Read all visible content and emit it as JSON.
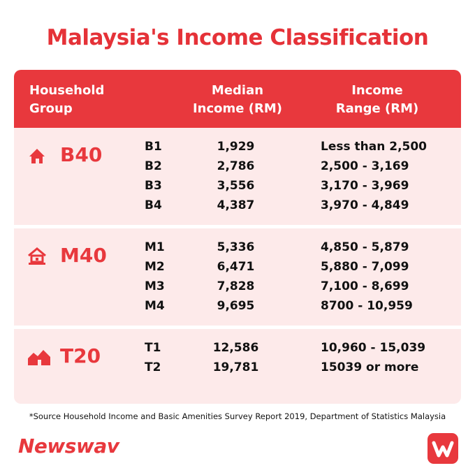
{
  "title": "Malaysia's Income Classification",
  "table": {
    "header": [
      "Household Group",
      "Median Income (RM)",
      "Income Range (RM)"
    ],
    "groups": [
      {
        "name": "B40",
        "rows": [
          [
            "B1",
            "1,929",
            "Less than 2,500"
          ],
          [
            "B2",
            "2,786",
            "2,500 - 3,169"
          ],
          [
            "B3",
            "3,556",
            "3,170 - 3,969"
          ],
          [
            "B4",
            "4,387",
            "3,970 - 4,849"
          ]
        ]
      },
      {
        "name": "M40",
        "rows": [
          [
            "M1",
            "5,336",
            "4,850 - 5,879"
          ],
          [
            "M2",
            "6,471",
            "5,880 - 7,099"
          ],
          [
            "M3",
            "7,828",
            "7,100 - 8,699"
          ],
          [
            "M4",
            "9,695",
            "8700 - 10,959"
          ]
        ]
      },
      {
        "name": "T20",
        "rows": [
          [
            "T1",
            "12,586",
            "10,960 - 15,039"
          ],
          [
            "T2",
            "19,781",
            "15039 or more"
          ]
        ]
      }
    ]
  },
  "footnote": "*Source Household Income and Basic Amenities Survey Report 2019, Department of Statistics Malaysia",
  "brand": "Newswav"
}
